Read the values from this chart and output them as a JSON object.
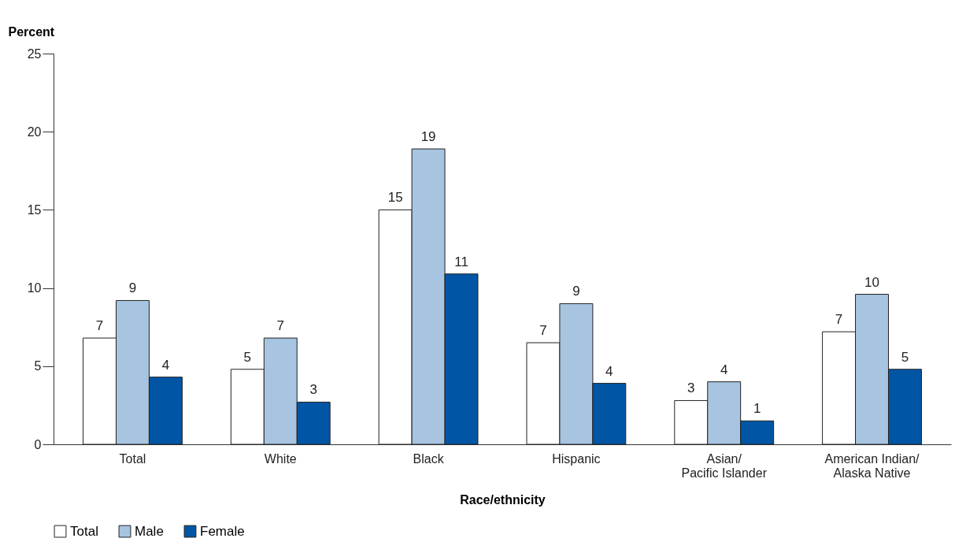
{
  "chart_data": {
    "type": "bar",
    "xlabel": "Race/ethnicity",
    "ylabel": "Percent",
    "categories": [
      "Total",
      "White",
      "Black",
      "Hispanic",
      "Asian/\nPacific Islander",
      "American Indian/\nAlaska Native"
    ],
    "series": [
      {
        "name": "Total",
        "color": "#ffffff",
        "values": [
          6.8,
          4.8,
          15.0,
          6.5,
          2.8,
          7.2
        ],
        "value_labels": [
          "7",
          "5",
          "15",
          "7",
          "3",
          "7"
        ]
      },
      {
        "name": "Male",
        "color": "#a7c4e0",
        "values": [
          9.2,
          6.8,
          18.9,
          9.0,
          4.0,
          9.6
        ],
        "value_labels": [
          "9",
          "7",
          "19",
          "9",
          "4",
          "10"
        ]
      },
      {
        "name": "Female",
        "color": "#0055a5",
        "values": [
          4.3,
          2.7,
          10.9,
          3.9,
          1.5,
          4.8
        ],
        "value_labels": [
          "4",
          "3",
          "11",
          "4",
          "1",
          "5"
        ]
      }
    ],
    "ylim": [
      0,
      25
    ],
    "yticks": [
      0,
      5,
      10,
      15,
      20,
      25
    ],
    "legend": "bottom"
  }
}
